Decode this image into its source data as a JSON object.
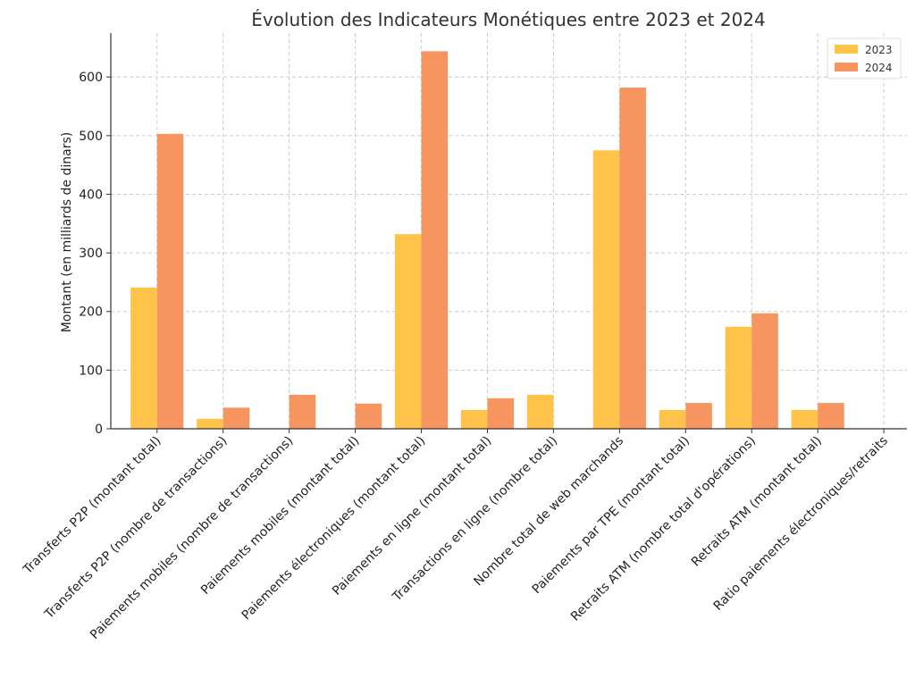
{
  "chart_data": {
    "type": "bar",
    "title": "Évolution des Indicateurs Monétiques entre 2023 et 2024",
    "xlabel": "",
    "ylabel": "Montant (en milliards de dinars)",
    "ylim": [
      0,
      675
    ],
    "yticks": [
      0,
      100,
      200,
      300,
      400,
      500,
      600
    ],
    "grid": true,
    "legend_position": "top-right",
    "categories": [
      "Transferts P2P (montant total)",
      "Transferts P2P (nombre de transactions)",
      "Paiements mobiles (nombre de transactions)",
      "Paiements mobiles (montant total)",
      "Paiements électroniques (montant total)",
      "Paiements en ligne (montant total)",
      "Transactions en ligne (nombre total)",
      "Nombre total de web marchands",
      "Paiements par TPE (montant total)",
      "Retraits ATM (nombre total d'opérations)",
      "Retraits ATM (montant total)",
      "Ratio paiements électroniques/retraits"
    ],
    "series": [
      {
        "name": "2023",
        "color": "#FFC34A",
        "values": [
          241,
          17,
          0,
          0,
          332,
          32,
          58,
          475,
          32,
          174,
          32,
          0
        ]
      },
      {
        "name": "2024",
        "color": "#F79560",
        "values": [
          503,
          36,
          58,
          43,
          644,
          52,
          0,
          582,
          44,
          197,
          44,
          0
        ]
      }
    ]
  }
}
